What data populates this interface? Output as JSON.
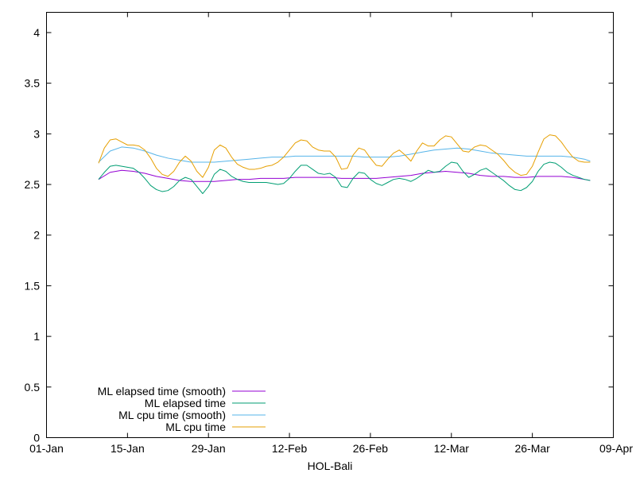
{
  "chart_data": {
    "type": "line",
    "title": "",
    "xlabel": "HOL-Bali",
    "ylabel": "",
    "x_ticks": [
      "01-Jan",
      "15-Jan",
      "29-Jan",
      "12-Feb",
      "26-Feb",
      "12-Mar",
      "26-Mar",
      "09-Apr"
    ],
    "x_range_days": [
      0,
      98
    ],
    "ylim": [
      0,
      4.2
    ],
    "y_ticks": [
      "0",
      "0.5",
      "1",
      "1.5",
      "2",
      "2.5",
      "3",
      "3.5",
      "4"
    ],
    "y_tick_values": [
      0,
      0.5,
      1,
      1.5,
      2,
      2.5,
      3,
      3.5,
      4
    ],
    "grid": false,
    "legend_position": "bottom-left",
    "series": [
      {
        "name": "ML elapsed time (smooth)",
        "color": "#9400d3",
        "x": [
          9,
          11,
          13,
          15,
          17,
          19,
          21,
          23,
          25,
          27,
          29,
          31,
          33,
          35,
          37,
          39,
          41,
          43,
          45,
          47,
          49,
          51,
          53,
          55,
          57,
          59,
          61,
          63,
          65,
          67,
          69,
          71,
          73,
          75,
          77,
          79,
          81,
          83,
          85,
          87,
          89,
          91,
          93,
          94
        ],
        "y": [
          2.55,
          2.62,
          2.64,
          2.63,
          2.61,
          2.58,
          2.56,
          2.54,
          2.53,
          2.53,
          2.53,
          2.54,
          2.55,
          2.55,
          2.56,
          2.56,
          2.56,
          2.57,
          2.57,
          2.57,
          2.57,
          2.56,
          2.56,
          2.56,
          2.56,
          2.57,
          2.58,
          2.59,
          2.61,
          2.62,
          2.63,
          2.62,
          2.61,
          2.59,
          2.58,
          2.58,
          2.57,
          2.57,
          2.58,
          2.58,
          2.58,
          2.57,
          2.55,
          2.54
        ]
      },
      {
        "name": "ML elapsed time",
        "color": "#009e73",
        "x": [
          9,
          10,
          11,
          12,
          13,
          14,
          15,
          16,
          17,
          18,
          19,
          20,
          21,
          22,
          23,
          24,
          25,
          26,
          27,
          28,
          29,
          30,
          31,
          32,
          33,
          34,
          35,
          36,
          37,
          38,
          39,
          40,
          41,
          42,
          43,
          44,
          45,
          46,
          47,
          48,
          49,
          50,
          51,
          52,
          53,
          54,
          55,
          56,
          57,
          58,
          59,
          60,
          61,
          62,
          63,
          64,
          65,
          66,
          67,
          68,
          69,
          70,
          71,
          72,
          73,
          74,
          75,
          76,
          77,
          78,
          79,
          80,
          81,
          82,
          83,
          84,
          85,
          86,
          87,
          88,
          89,
          90,
          91,
          92,
          93,
          94
        ],
        "y": [
          2.55,
          2.62,
          2.68,
          2.69,
          2.68,
          2.67,
          2.66,
          2.62,
          2.56,
          2.49,
          2.45,
          2.43,
          2.44,
          2.48,
          2.54,
          2.57,
          2.55,
          2.48,
          2.41,
          2.48,
          2.6,
          2.65,
          2.63,
          2.58,
          2.55,
          2.53,
          2.52,
          2.52,
          2.52,
          2.52,
          2.51,
          2.5,
          2.51,
          2.56,
          2.63,
          2.69,
          2.69,
          2.65,
          2.61,
          2.6,
          2.61,
          2.57,
          2.48,
          2.47,
          2.56,
          2.62,
          2.61,
          2.55,
          2.51,
          2.49,
          2.52,
          2.55,
          2.56,
          2.55,
          2.53,
          2.56,
          2.6,
          2.64,
          2.62,
          2.63,
          2.68,
          2.72,
          2.71,
          2.63,
          2.57,
          2.6,
          2.64,
          2.66,
          2.62,
          2.58,
          2.54,
          2.49,
          2.45,
          2.44,
          2.47,
          2.53,
          2.63,
          2.7,
          2.72,
          2.71,
          2.67,
          2.62,
          2.59,
          2.57,
          2.55,
          2.54
        ]
      },
      {
        "name": "ML cpu time (smooth)",
        "color": "#56b4e9",
        "x": [
          9,
          11,
          13,
          15,
          17,
          19,
          21,
          23,
          25,
          27,
          29,
          31,
          33,
          35,
          37,
          39,
          41,
          43,
          45,
          47,
          49,
          51,
          53,
          55,
          57,
          59,
          61,
          63,
          65,
          67,
          69,
          71,
          73,
          75,
          77,
          79,
          81,
          83,
          85,
          87,
          89,
          91,
          93,
          94
        ],
        "y": [
          2.72,
          2.83,
          2.87,
          2.86,
          2.83,
          2.79,
          2.76,
          2.74,
          2.72,
          2.72,
          2.72,
          2.73,
          2.74,
          2.75,
          2.76,
          2.77,
          2.77,
          2.78,
          2.78,
          2.78,
          2.78,
          2.78,
          2.78,
          2.77,
          2.77,
          2.77,
          2.78,
          2.8,
          2.82,
          2.84,
          2.85,
          2.86,
          2.85,
          2.83,
          2.81,
          2.8,
          2.79,
          2.78,
          2.78,
          2.78,
          2.78,
          2.77,
          2.75,
          2.73
        ]
      },
      {
        "name": "ML cpu time",
        "color": "#e69f00",
        "x": [
          9,
          10,
          11,
          12,
          13,
          14,
          15,
          16,
          17,
          18,
          19,
          20,
          21,
          22,
          23,
          24,
          25,
          26,
          27,
          28,
          29,
          30,
          31,
          32,
          33,
          34,
          35,
          36,
          37,
          38,
          39,
          40,
          41,
          42,
          43,
          44,
          45,
          46,
          47,
          48,
          49,
          50,
          51,
          52,
          53,
          54,
          55,
          56,
          57,
          58,
          59,
          60,
          61,
          62,
          63,
          64,
          65,
          66,
          67,
          68,
          69,
          70,
          71,
          72,
          73,
          74,
          75,
          76,
          77,
          78,
          79,
          80,
          81,
          82,
          83,
          84,
          85,
          86,
          87,
          88,
          89,
          90,
          91,
          92,
          93,
          94
        ],
        "y": [
          2.71,
          2.86,
          2.94,
          2.95,
          2.92,
          2.89,
          2.89,
          2.88,
          2.84,
          2.76,
          2.66,
          2.6,
          2.58,
          2.63,
          2.72,
          2.78,
          2.73,
          2.63,
          2.57,
          2.67,
          2.84,
          2.89,
          2.86,
          2.77,
          2.7,
          2.67,
          2.65,
          2.65,
          2.66,
          2.68,
          2.69,
          2.72,
          2.77,
          2.84,
          2.91,
          2.94,
          2.93,
          2.87,
          2.84,
          2.83,
          2.83,
          2.77,
          2.65,
          2.66,
          2.79,
          2.86,
          2.84,
          2.76,
          2.69,
          2.68,
          2.75,
          2.81,
          2.84,
          2.79,
          2.73,
          2.83,
          2.91,
          2.88,
          2.88,
          2.94,
          2.98,
          2.97,
          2.9,
          2.83,
          2.82,
          2.87,
          2.89,
          2.88,
          2.84,
          2.8,
          2.74,
          2.67,
          2.62,
          2.59,
          2.6,
          2.68,
          2.82,
          2.95,
          2.99,
          2.98,
          2.92,
          2.84,
          2.77,
          2.73,
          2.72,
          2.72
        ]
      }
    ]
  }
}
